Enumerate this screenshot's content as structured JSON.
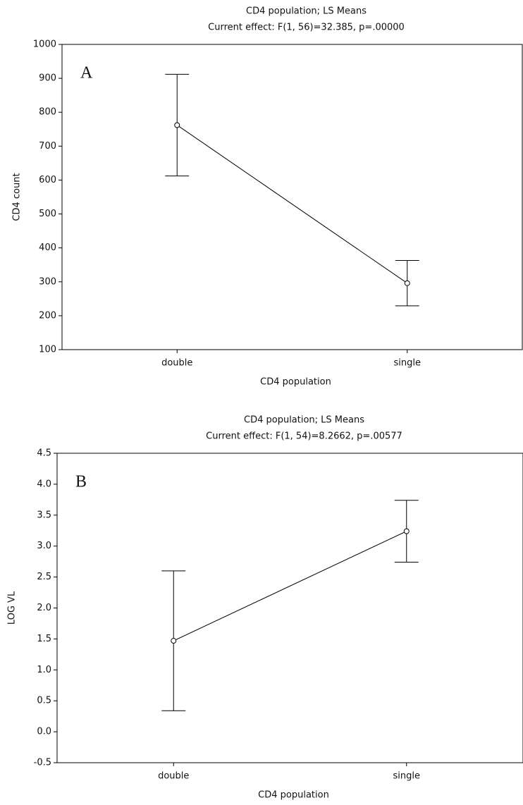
{
  "chart_data": [
    {
      "type": "line",
      "title": "CD4 population; LS Means",
      "subtitle": "Current effect: F(1, 56)=32.385, p=.00000",
      "annotation": "A",
      "x_label": "CD4 population",
      "y_label": "CD4 count",
      "categories": [
        "double",
        "single"
      ],
      "series": [
        {
          "color": "#000000",
          "values": [
            762,
            296
          ],
          "errors": [
            150,
            67
          ]
        }
      ],
      "ylim": [
        100,
        1000
      ],
      "yticks": [
        100,
        200,
        300,
        400,
        500,
        600,
        700,
        800,
        900,
        1000
      ]
    },
    {
      "type": "line",
      "title": "CD4 population; LS Means",
      "subtitle": "Current effect: F(1, 54)=8.2662, p=.00577",
      "annotation": "B",
      "x_label": "CD4 population",
      "y_label": "LOG VL",
      "categories": [
        "double",
        "single"
      ],
      "series": [
        {
          "color": "#000000",
          "values": [
            1.47,
            3.24
          ],
          "errors": [
            1.13,
            0.5
          ]
        }
      ],
      "ylim": [
        -0.5,
        4.5
      ],
      "yticks": [
        -0.5,
        {
          "value": 0,
          "label": "0.0"
        },
        0.5,
        {
          "value": 1,
          "label": "1.0"
        },
        1.5,
        {
          "value": 2,
          "label": "2.0"
        },
        2.5,
        {
          "value": 3,
          "label": "3.0"
        },
        3.5,
        {
          "value": 4,
          "label": "4.0"
        },
        4.5
      ]
    }
  ]
}
